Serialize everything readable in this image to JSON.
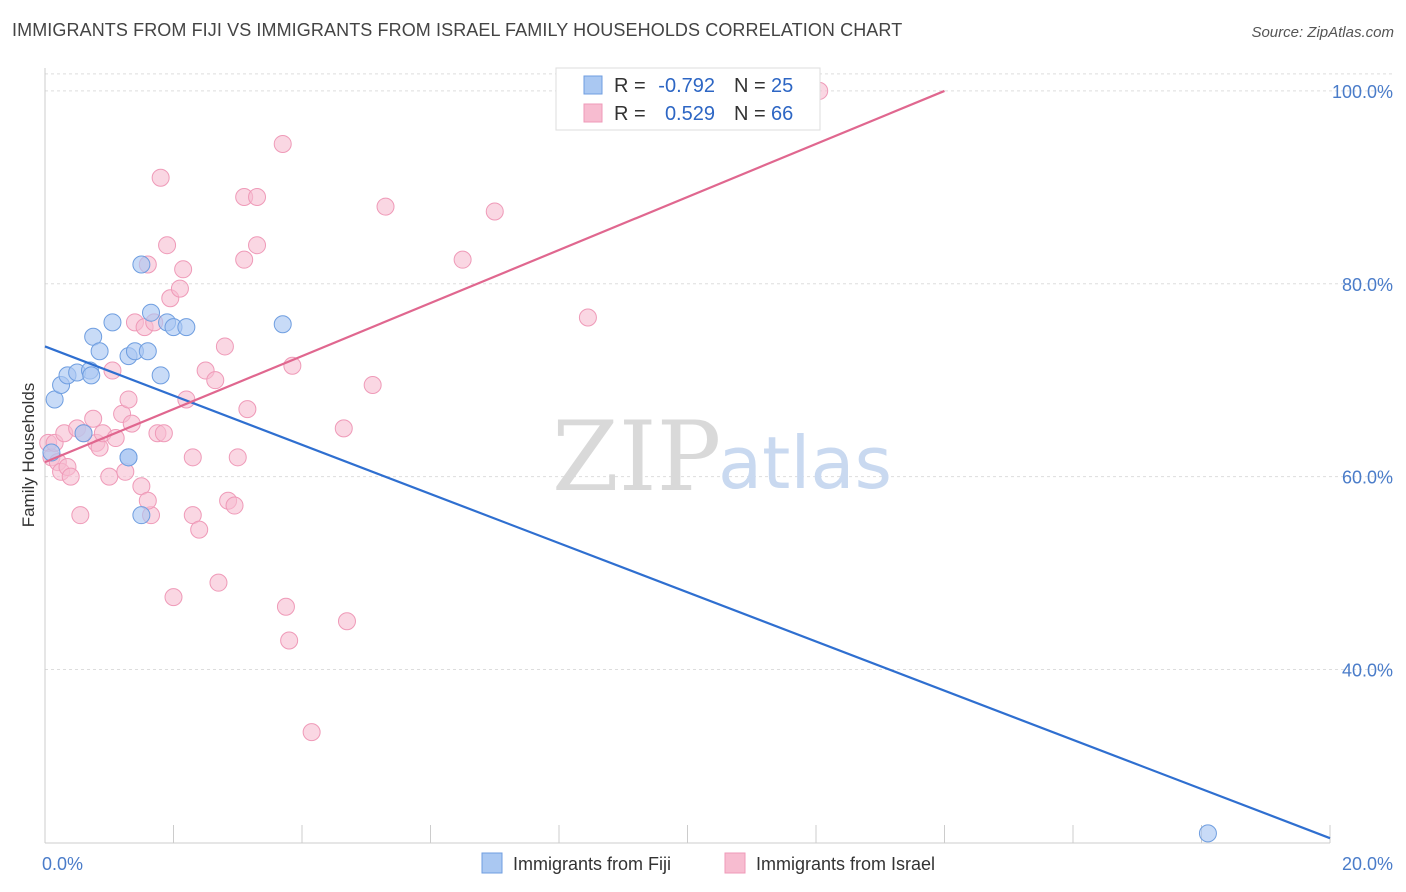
{
  "title": "IMMIGRANTS FROM FIJI VS IMMIGRANTS FROM ISRAEL FAMILY HOUSEHOLDS CORRELATION CHART",
  "source": "Source: ZipAtlas.com",
  "watermark": {
    "zip": "ZIP",
    "atlas": "atlas"
  },
  "colors": {
    "fiji_fill": "#aac8f2",
    "fiji_stroke": "#6f9ee0",
    "fiji_line": "#2f6fd0",
    "israel_fill": "#f7bcd0",
    "israel_stroke": "#ef9ab8",
    "israel_line": "#e0678f",
    "grid": "#dddddd",
    "tick_label": "#4a7cc9"
  },
  "legend_top": {
    "rows": [
      {
        "r_label": "R =",
        "r_value": "-0.792",
        "n_label": "N =",
        "n_value": "25"
      },
      {
        "r_label": "R =",
        "r_value": "0.529",
        "n_label": "N =",
        "n_value": "66"
      }
    ]
  },
  "chart_data": {
    "type": "scatter",
    "title": "IMMIGRANTS FROM FIJI VS IMMIGRANTS FROM ISRAEL FAMILY HOUSEHOLDS CORRELATION CHART",
    "xlabel": "",
    "ylabel": "Family Households",
    "xlim": [
      0,
      20
    ],
    "ylim": [
      22,
      103
    ],
    "x_tick_labels": [
      {
        "value": 0,
        "label": "0.0%"
      },
      {
        "value": 20,
        "label": "20.0%"
      }
    ],
    "y_tick_labels": [
      {
        "value": 40,
        "label": "40.0%"
      },
      {
        "value": 60,
        "label": "60.0%"
      },
      {
        "value": 80,
        "label": "80.0%"
      },
      {
        "value": 100,
        "label": "100.0%"
      }
    ],
    "grid": true,
    "legend_position": "bottom",
    "series": [
      {
        "name": "Immigrants from Fiji",
        "r": -0.792,
        "n": 25,
        "trend": {
          "x": [
            0,
            20
          ],
          "y": [
            73.5,
            22.5
          ]
        },
        "points": [
          [
            0.1,
            62.5
          ],
          [
            0.15,
            68
          ],
          [
            0.25,
            69.5
          ],
          [
            0.35,
            70.5
          ],
          [
            0.5,
            70.8
          ],
          [
            0.6,
            64.5
          ],
          [
            0.7,
            71
          ],
          [
            0.72,
            70.5
          ],
          [
            0.75,
            74.5
          ],
          [
            0.85,
            73
          ],
          [
            1.05,
            76
          ],
          [
            1.3,
            62
          ],
          [
            1.3,
            62
          ],
          [
            1.3,
            72.5
          ],
          [
            1.4,
            73
          ],
          [
            1.5,
            82
          ],
          [
            1.5,
            56
          ],
          [
            1.6,
            73
          ],
          [
            1.65,
            77
          ],
          [
            1.8,
            70.5
          ],
          [
            1.9,
            76
          ],
          [
            2.0,
            75.5
          ],
          [
            2.2,
            75.5
          ],
          [
            3.7,
            75.8
          ],
          [
            18.1,
            23
          ]
        ]
      },
      {
        "name": "Immigrants from Israel",
        "r": 0.529,
        "n": 66,
        "trend": {
          "x": [
            0,
            14
          ],
          "y": [
            61.5,
            100
          ]
        },
        "points": [
          [
            0.05,
            63.5
          ],
          [
            0.1,
            62
          ],
          [
            0.15,
            63.5
          ],
          [
            0.2,
            61.5
          ],
          [
            0.25,
            60.5
          ],
          [
            0.3,
            64.5
          ],
          [
            0.35,
            61
          ],
          [
            0.4,
            60
          ],
          [
            0.5,
            65
          ],
          [
            0.55,
            56
          ],
          [
            0.6,
            64.5
          ],
          [
            0.75,
            66
          ],
          [
            0.8,
            63.5
          ],
          [
            0.85,
            63
          ],
          [
            0.9,
            64.5
          ],
          [
            1.0,
            60
          ],
          [
            1.05,
            71
          ],
          [
            1.1,
            64
          ],
          [
            1.2,
            66.5
          ],
          [
            1.25,
            60.5
          ],
          [
            1.3,
            68
          ],
          [
            1.35,
            65.5
          ],
          [
            1.4,
            76
          ],
          [
            1.5,
            59
          ],
          [
            1.55,
            75.5
          ],
          [
            1.6,
            82
          ],
          [
            1.65,
            56
          ],
          [
            1.6,
            57.5
          ],
          [
            1.7,
            76
          ],
          [
            1.75,
            64.5
          ],
          [
            1.8,
            91
          ],
          [
            1.85,
            64.5
          ],
          [
            1.9,
            84
          ],
          [
            1.95,
            78.5
          ],
          [
            2.0,
            47.5
          ],
          [
            2.1,
            79.5
          ],
          [
            2.15,
            81.5
          ],
          [
            2.2,
            68
          ],
          [
            2.3,
            56
          ],
          [
            2.3,
            62
          ],
          [
            2.4,
            54.5
          ],
          [
            2.5,
            71
          ],
          [
            2.65,
            70
          ],
          [
            2.7,
            49
          ],
          [
            2.8,
            73.5
          ],
          [
            2.85,
            57.5
          ],
          [
            2.95,
            57
          ],
          [
            3.0,
            62
          ],
          [
            3.1,
            82.5
          ],
          [
            3.15,
            67
          ],
          [
            3.1,
            89
          ],
          [
            3.3,
            84
          ],
          [
            3.3,
            89
          ],
          [
            3.7,
            94.5
          ],
          [
            3.75,
            46.5
          ],
          [
            3.8,
            43
          ],
          [
            3.85,
            71.5
          ],
          [
            4.15,
            33.5
          ],
          [
            4.65,
            65
          ],
          [
            4.7,
            45
          ],
          [
            5.1,
            69.5
          ],
          [
            5.3,
            88
          ],
          [
            6.5,
            82.5
          ],
          [
            7.0,
            87.5
          ],
          [
            8.45,
            76.5
          ],
          [
            12.05,
            100
          ]
        ]
      }
    ]
  },
  "legend_bottom": {
    "items": [
      {
        "label": "Immigrants from Fiji"
      },
      {
        "label": "Immigrants from Israel"
      }
    ]
  }
}
